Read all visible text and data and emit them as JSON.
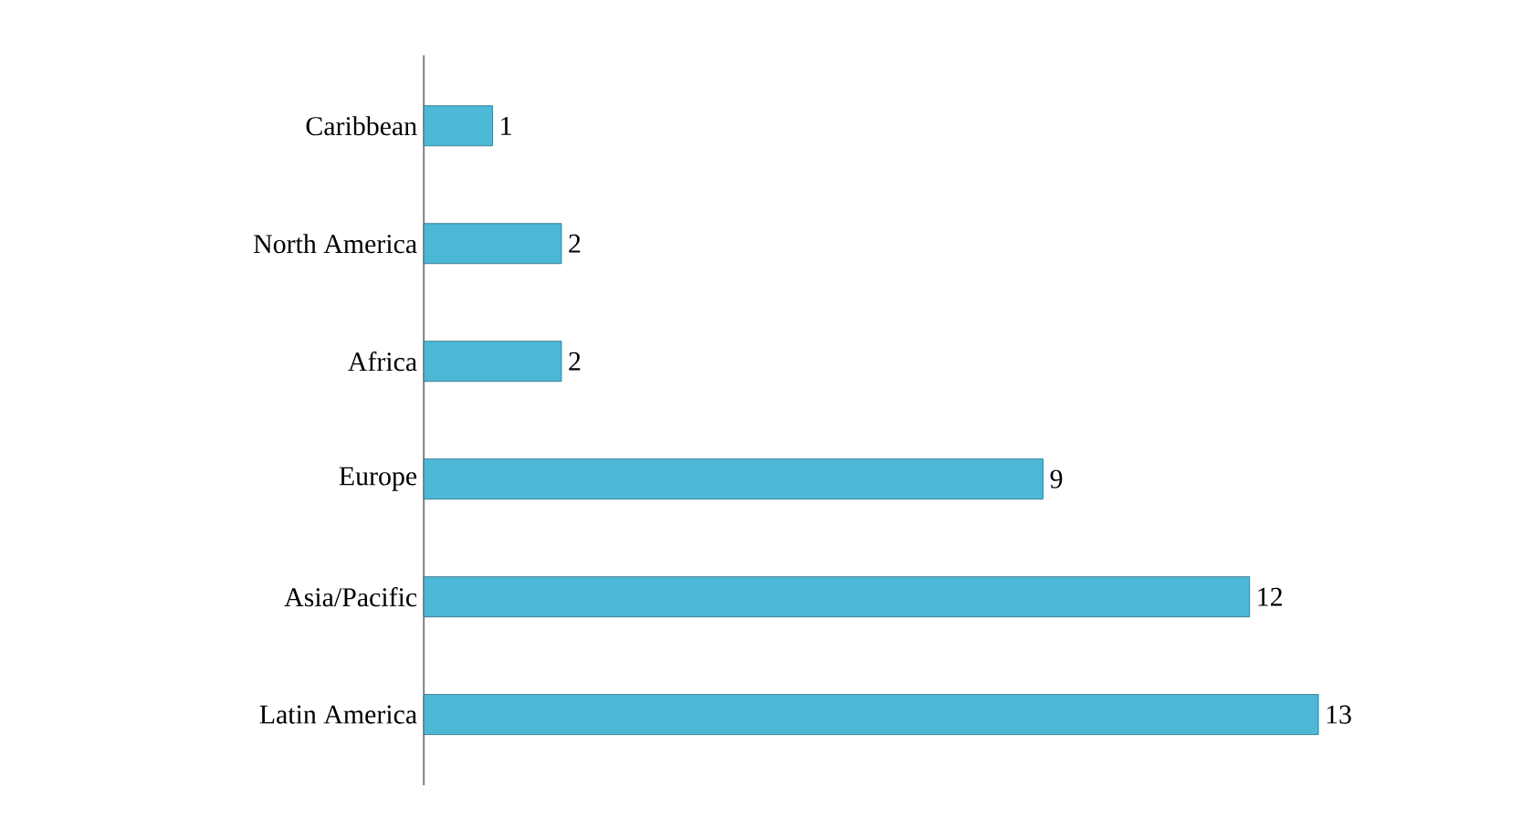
{
  "chart_data": {
    "type": "bar",
    "orientation": "horizontal",
    "categories": [
      "Caribbean",
      "North America",
      "Africa",
      "Europe",
      "Asia/Pacific",
      "Latin America"
    ],
    "values": [
      1,
      2,
      2,
      9,
      12,
      13
    ],
    "color": "#4bb8d6",
    "data_labels": true
  }
}
